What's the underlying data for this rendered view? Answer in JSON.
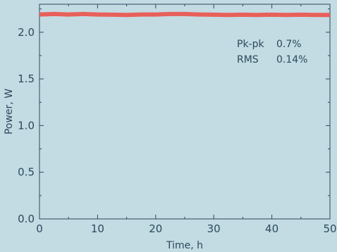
{
  "chart_data": {
    "type": "line",
    "xlabel": "Time, h",
    "ylabel": "Power, W",
    "xlim": [
      0,
      50
    ],
    "ylim": [
      0,
      2.3
    ],
    "xticks": [
      "0",
      "10",
      "20",
      "30",
      "40",
      "50"
    ],
    "yticks": [
      "0.0",
      "0.5",
      "1.0",
      "1.5",
      "2.0"
    ],
    "grid": false,
    "series": [
      {
        "color": "#e8605a",
        "x": [
          0,
          2.5,
          5,
          7.5,
          10,
          12.5,
          15,
          17.5,
          20,
          22.5,
          25,
          27.5,
          30,
          32.5,
          35,
          37.5,
          40,
          42.5,
          45,
          47.5,
          50
        ],
        "y": [
          2.19,
          2.195,
          2.19,
          2.195,
          2.19,
          2.188,
          2.185,
          2.19,
          2.19,
          2.195,
          2.195,
          2.19,
          2.188,
          2.185,
          2.188,
          2.185,
          2.188,
          2.185,
          2.188,
          2.185,
          2.185
        ]
      }
    ],
    "annotations": [
      {
        "label": "Pk-pk",
        "value": "0.7%"
      },
      {
        "label": "RMS",
        "value": "0.14%"
      }
    ]
  }
}
